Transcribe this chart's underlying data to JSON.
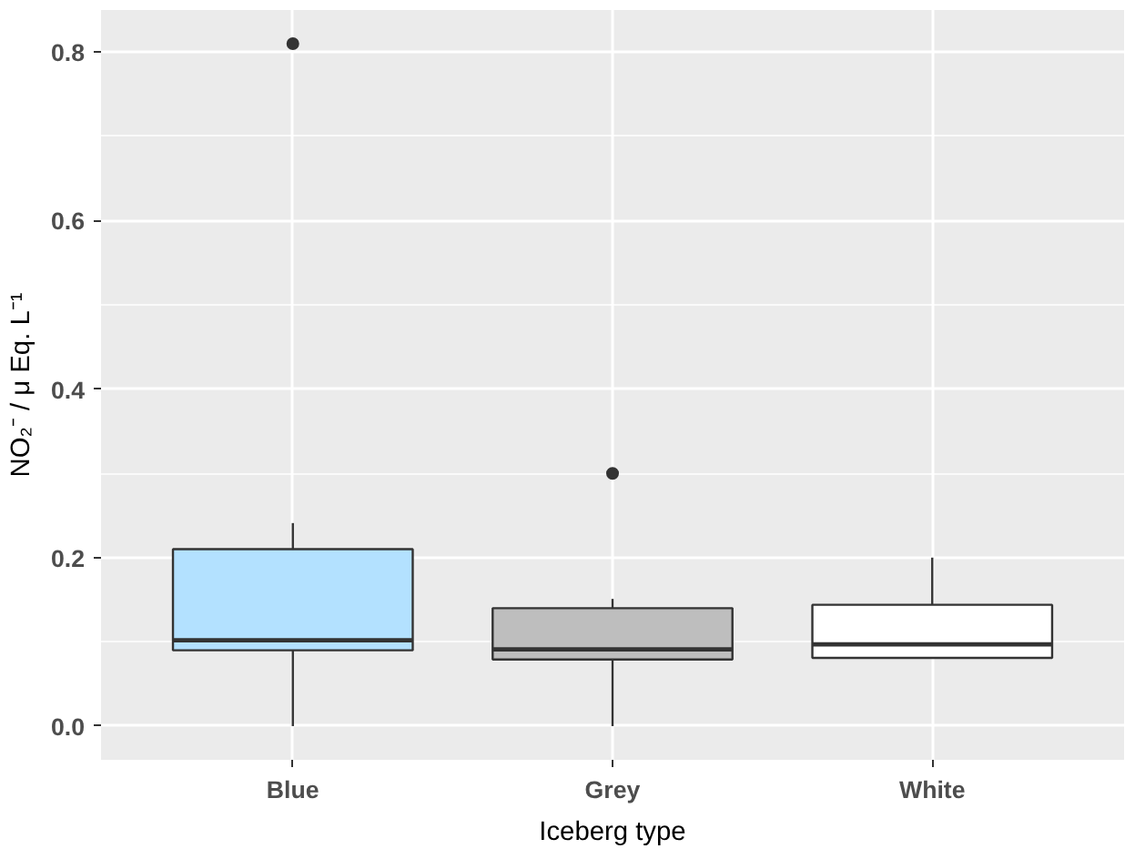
{
  "chart_data": {
    "type": "box",
    "xlabel": "Iceberg type",
    "ylabel": "NO₂⁻ / μ Eq. L⁻¹",
    "categories": [
      "Blue",
      "Grey",
      "White"
    ],
    "colors": [
      "#b3e1ff",
      "#bebebe",
      "#ffffff"
    ],
    "boxes": [
      {
        "low": 0.0,
        "q1": 0.09,
        "median": 0.102,
        "q3": 0.21,
        "high": 0.241,
        "outliers": [
          0.81
        ]
      },
      {
        "low": 0.0,
        "q1": 0.079,
        "median": 0.091,
        "q3": 0.14,
        "high": 0.151,
        "outliers": [
          0.3
        ]
      },
      {
        "low": 0.081,
        "q1": 0.081,
        "median": 0.097,
        "q3": 0.144,
        "high": 0.2
      }
    ],
    "ylim": [
      -0.04,
      0.85
    ],
    "yticks": [
      {
        "value": 0,
        "label": "0.0"
      },
      {
        "value": 0.2,
        "label": "0.2"
      },
      {
        "value": 0.4,
        "label": "0.4"
      },
      {
        "value": 0.6,
        "label": "0.6"
      },
      {
        "value": 0.8,
        "label": "0.8"
      }
    ],
    "grid": true
  }
}
